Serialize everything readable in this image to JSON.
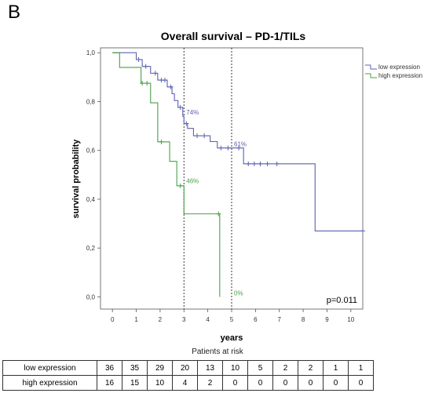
{
  "panel_label": "B",
  "risk_table": {
    "title": "Patients at risk",
    "rows": [
      {
        "label": "low expression",
        "values": [
          "36",
          "35",
          "29",
          "20",
          "13",
          "10",
          "5",
          "2",
          "2",
          "1",
          "1"
        ]
      },
      {
        "label": "high expression",
        "values": [
          "16",
          "15",
          "10",
          "4",
          "2",
          "0",
          "0",
          "0",
          "0",
          "0",
          "0"
        ]
      }
    ]
  },
  "chart_data": {
    "type": "line",
    "title": "Overall survival – PD-1/TILs",
    "xlabel": "years",
    "ylabel": "survival probability",
    "xlim": [
      -0.5,
      10.5
    ],
    "ylim": [
      -0.05,
      1.02
    ],
    "xticks": [
      0,
      1,
      2,
      3,
      4,
      5,
      6,
      7,
      8,
      9,
      10
    ],
    "yticks": [
      0.0,
      0.2,
      0.4,
      0.6,
      0.8,
      1.0
    ],
    "ytick_labels": [
      "0,0",
      "0,2",
      "0,4",
      "0,6",
      "0,8",
      "1,0"
    ],
    "reference_lines_x": [
      3,
      5
    ],
    "legend_position": "top-right",
    "p_value": "p=0.011",
    "series": [
      {
        "name": "low expression",
        "color": "#5b62b0",
        "steps": [
          [
            0,
            1.0
          ],
          [
            1.0,
            0.972
          ],
          [
            1.25,
            0.944
          ],
          [
            1.6,
            0.916
          ],
          [
            1.9,
            0.888
          ],
          [
            2.3,
            0.86
          ],
          [
            2.5,
            0.832
          ],
          [
            2.6,
            0.804
          ],
          [
            2.75,
            0.776
          ],
          [
            2.95,
            0.74
          ],
          [
            3.0,
            0.71
          ],
          [
            3.15,
            0.69
          ],
          [
            3.4,
            0.66
          ],
          [
            4.1,
            0.636
          ],
          [
            4.4,
            0.61
          ],
          [
            5.5,
            0.545
          ],
          [
            8.5,
            0.27
          ],
          [
            10.5,
            0.27
          ]
        ],
        "end_x": 10.5,
        "censor_x": [
          1.1,
          1.4,
          1.8,
          2.05,
          2.2,
          2.45,
          2.85,
          3.1,
          3.55,
          3.85,
          4.55,
          4.85,
          5.3,
          5.7,
          5.95,
          6.2,
          6.5,
          6.9,
          10.5
        ],
        "annotations": [
          {
            "x": 3,
            "y": 0.74,
            "text": "74%"
          },
          {
            "x": 5,
            "y": 0.61,
            "text": "61%"
          }
        ]
      },
      {
        "name": "high expression",
        "color": "#48a048",
        "steps": [
          [
            0,
            1.0
          ],
          [
            0.3,
            0.94
          ],
          [
            1.2,
            0.875
          ],
          [
            1.6,
            0.795
          ],
          [
            1.9,
            0.635
          ],
          [
            2.4,
            0.555
          ],
          [
            2.7,
            0.455
          ],
          [
            3.0,
            0.34
          ],
          [
            4.5,
            0.0
          ]
        ],
        "end_x": 4.5,
        "censor_x": [
          1.25,
          1.45,
          2.05,
          2.85,
          4.45
        ],
        "annotations": [
          {
            "x": 3,
            "y": 0.46,
            "text": "46%"
          },
          {
            "x": 5,
            "y": 0.0,
            "text": "0%"
          }
        ]
      }
    ]
  }
}
